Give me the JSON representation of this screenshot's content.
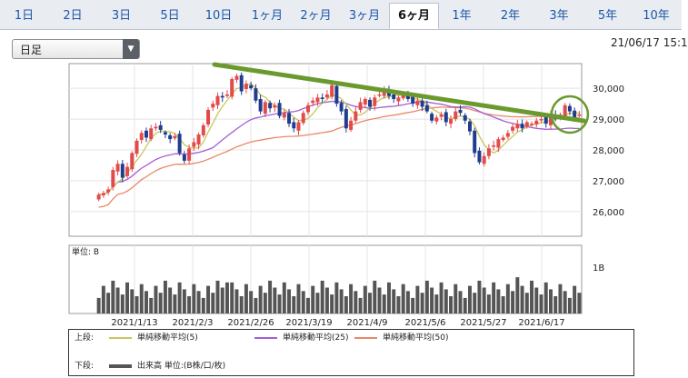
{
  "tabs": [
    {
      "label": "1日",
      "active": false
    },
    {
      "label": "2日",
      "active": false
    },
    {
      "label": "3日",
      "active": false
    },
    {
      "label": "5日",
      "active": false
    },
    {
      "label": "10日",
      "active": false
    },
    {
      "label": "1ヶ月",
      "active": false
    },
    {
      "label": "2ヶ月",
      "active": false
    },
    {
      "label": "3ヶ月",
      "active": false
    },
    {
      "label": "6ヶ月",
      "active": true
    },
    {
      "label": "1年",
      "active": false
    },
    {
      "label": "2年",
      "active": false
    },
    {
      "label": "3年",
      "active": false
    },
    {
      "label": "5年",
      "active": false
    },
    {
      "label": "10年",
      "active": false
    }
  ],
  "period_select": {
    "value": "日足"
  },
  "datetime": "21/06/17 15:1",
  "legend": {
    "upper_label": "上段:",
    "lower_label": "下段:",
    "ma5": "単純移動平均(5)",
    "ma25": "単純移動平均(25)",
    "ma50": "単純移動平均(50)",
    "volume": "出来高 単位:(B株/口/枚)"
  },
  "colors": {
    "up": "#e34a4a",
    "down": "#1f3d8f",
    "ma5": "#c8c65a",
    "ma25": "#a65ed6",
    "ma50": "#e8896a",
    "trendline": "#6a9a2e",
    "volume": "#555555"
  },
  "chart_data": {
    "type": "candlestick",
    "x_tick_labels": [
      "2021/1/13",
      "2021/2/3",
      "2021/2/26",
      "2021/3/19",
      "2021/4/9",
      "2021/5/6",
      "2021/5/27",
      "2021/6/17"
    ],
    "y_tick_labels": [
      "30,000",
      "29,000",
      "28,000",
      "27,000",
      "26,000"
    ],
    "y_range": [
      25200,
      30800
    ],
    "volume_unit_label": "単位: B",
    "volume_tick_label": "1B",
    "closes": [
      26550,
      26600,
      26720,
      27350,
      27550,
      27100,
      27450,
      27900,
      28300,
      28550,
      28400,
      28700,
      28750,
      28650,
      28500,
      28350,
      28450,
      27900,
      27650,
      28050,
      28250,
      28500,
      28800,
      29300,
      29500,
      29750,
      29700,
      29800,
      30300,
      30400,
      29900,
      30150,
      30000,
      29600,
      29250,
      29550,
      29350,
      29450,
      29100,
      29200,
      28850,
      28700,
      28900,
      29200,
      29450,
      29600,
      29700,
      29650,
      29800,
      30100,
      29500,
      29250,
      28700,
      28950,
      29250,
      29550,
      29650,
      29400,
      29700,
      29800,
      29950,
      29750,
      29650,
      29700,
      29800,
      29650,
      29500,
      29600,
      29400,
      29250,
      28950,
      29050,
      29150,
      28900,
      29000,
      29250,
      29200,
      28950,
      28600,
      27900,
      27600,
      27800,
      28050,
      28150,
      28350,
      28400,
      28550,
      28750,
      28850,
      28700,
      28900,
      28850,
      28950,
      29000,
      28850,
      29150,
      29000,
      29150,
      29450,
      29250,
      29050,
      29150
    ],
    "ma5_label": "単純移動平均(5)",
    "ma25_label": "単純移動平均(25)",
    "ma50_label": "単純移動平均(50)",
    "volume_label": "出来高"
  }
}
